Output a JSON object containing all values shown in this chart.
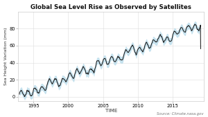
{
  "title": "Global Sea Level Rise as Observed by Satellites",
  "xlabel": "TIME",
  "ylabel": "Sea Height Variation (mm)",
  "source": "Source: Climate.nasa.gov",
  "xlim": [
    1992.8,
    2019.5
  ],
  "ylim": [
    -5,
    100
  ],
  "xticks": [
    1995,
    2000,
    2005,
    2010,
    2015
  ],
  "yticks": [
    0,
    20,
    40,
    60,
    80
  ],
  "line_color": "#1a1a1a",
  "fill_color": "#aed6e8",
  "background_color": "#ffffff",
  "plot_bg_color": "#ffffff",
  "rate_mm_per_year": 3.3,
  "start_year": 1993.0,
  "end_year": 2019.0,
  "seasonal_amplitude": 3.5,
  "enso_amplitude": 4.0,
  "noise_std": 1.5,
  "uncertainty_base": 4.0,
  "noise_seed": 7
}
